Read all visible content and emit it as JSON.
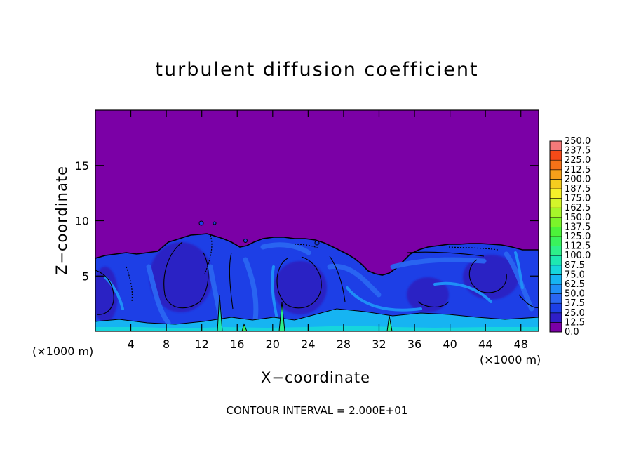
{
  "chart_data": {
    "type": "heatmap",
    "title": "turbulent diffusion coefficient",
    "xlabel": "X−coordinate",
    "ylabel": "Z−coordinate",
    "x_unit_left": "(×1000 m)",
    "x_unit_right": "(×1000 m)",
    "xlim": [
      0,
      50
    ],
    "ylim": [
      0,
      20
    ],
    "x_ticks": [
      4,
      8,
      12,
      16,
      20,
      24,
      28,
      32,
      36,
      40,
      44,
      48
    ],
    "y_ticks": [
      5,
      10,
      15
    ],
    "footer": "CONTOUR INTERVAL = 2.000E+01",
    "colorbar": {
      "levels": [
        "0.0",
        "12.5",
        "25.0",
        "37.5",
        "50.0",
        "62.5",
        "75.0",
        "87.5",
        "100.0",
        "112.5",
        "125.0",
        "137.5",
        "150.0",
        "162.5",
        "175.0",
        "187.5",
        "200.0",
        "212.5",
        "225.0",
        "237.5",
        "250.0"
      ],
      "colors": [
        "#7b00a6",
        "#2f1fc8",
        "#1d3fe6",
        "#2a66f2",
        "#1f8ef7",
        "#16b4f2",
        "#16d6dc",
        "#1ee8b2",
        "#2ef08a",
        "#3af25c",
        "#4cf23a",
        "#7bf42a",
        "#a6f52a",
        "#d4f52a",
        "#f5f02a",
        "#f5cc1f",
        "#f5a01a",
        "#f57218",
        "#f54a18",
        "#f52a22",
        "#f57a7a"
      ]
    },
    "top_region_value": 0.0
  }
}
